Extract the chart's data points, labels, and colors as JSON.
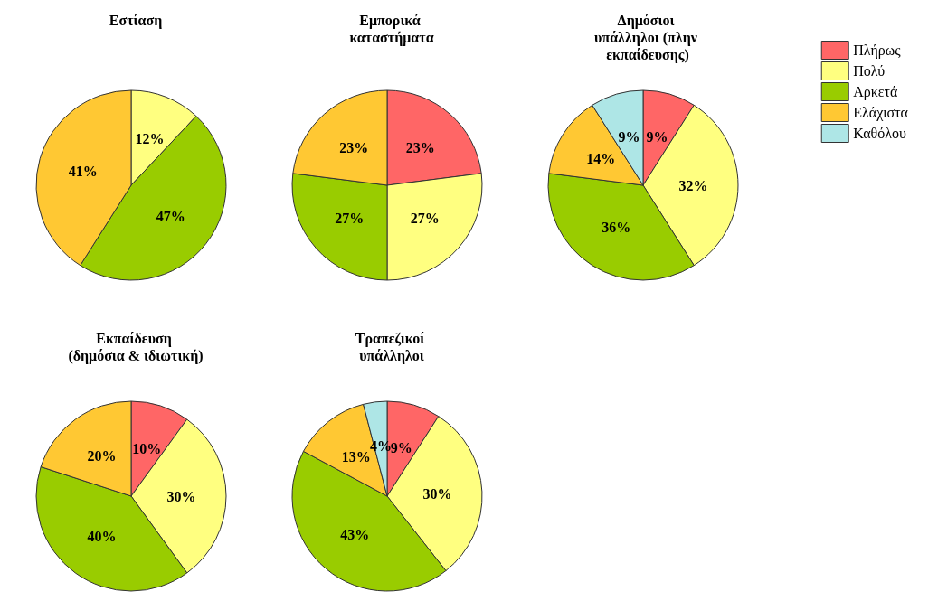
{
  "chart_data": [
    {
      "type": "pie",
      "title": "Εστίαση",
      "categories": [
        null,
        null,
        null
      ],
      "values": [
        12,
        47,
        41
      ],
      "value_labels": [
        "12%",
        "47%",
        "41%"
      ],
      "colors": [
        "#ffff80",
        "#99cc00",
        "#ffc833"
      ]
    },
    {
      "type": "pie",
      "title": "Εμπορικά καταστήματα",
      "categories": [
        null,
        null,
        null,
        null
      ],
      "values": [
        23,
        27,
        27,
        23
      ],
      "value_labels": [
        "23%",
        "27%",
        "27%",
        "23%"
      ],
      "colors": [
        "#ff6666",
        "#ffff80",
        "#99cc00",
        "#ffc833"
      ]
    },
    {
      "type": "pie",
      "title": "Δημόσιοι υπάλληλοι (πλην εκπαίδευσης)",
      "categories": [
        "Πλήρως",
        "Πολύ",
        "Αρκετά",
        "Ελάχιστα",
        "Καθόλου"
      ],
      "values": [
        9,
        32,
        36,
        14,
        9
      ],
      "value_labels": [
        "9%",
        "32%",
        "36%",
        "14%",
        "9%"
      ],
      "colors": [
        "#ff6666",
        "#ffff80",
        "#99cc00",
        "#ffc833",
        "#aee6e6"
      ],
      "legend": "top right"
    },
    {
      "type": "pie",
      "title": "Εκπαίδευση (δημόσια & ιδιωτική)",
      "categories": [
        null,
        null,
        null,
        null
      ],
      "values": [
        10,
        30,
        40,
        20
      ],
      "value_labels": [
        "10%",
        "30%",
        "40%",
        "20%"
      ],
      "colors": [
        "#ff6666",
        "#ffff80",
        "#99cc00",
        "#ffc833"
      ]
    },
    {
      "type": "pie",
      "title": "Τραπεζικοί υπάλληλοι",
      "categories": [
        null,
        null,
        null,
        null,
        null
      ],
      "values": [
        9,
        30,
        43,
        13,
        4
      ],
      "value_labels": [
        "9%",
        "30%",
        "43%",
        "13%",
        "4%"
      ],
      "colors": [
        "#ff6666",
        "#ffff80",
        "#99cc00",
        "#ffc833",
        "#aee6e6"
      ]
    }
  ]
}
